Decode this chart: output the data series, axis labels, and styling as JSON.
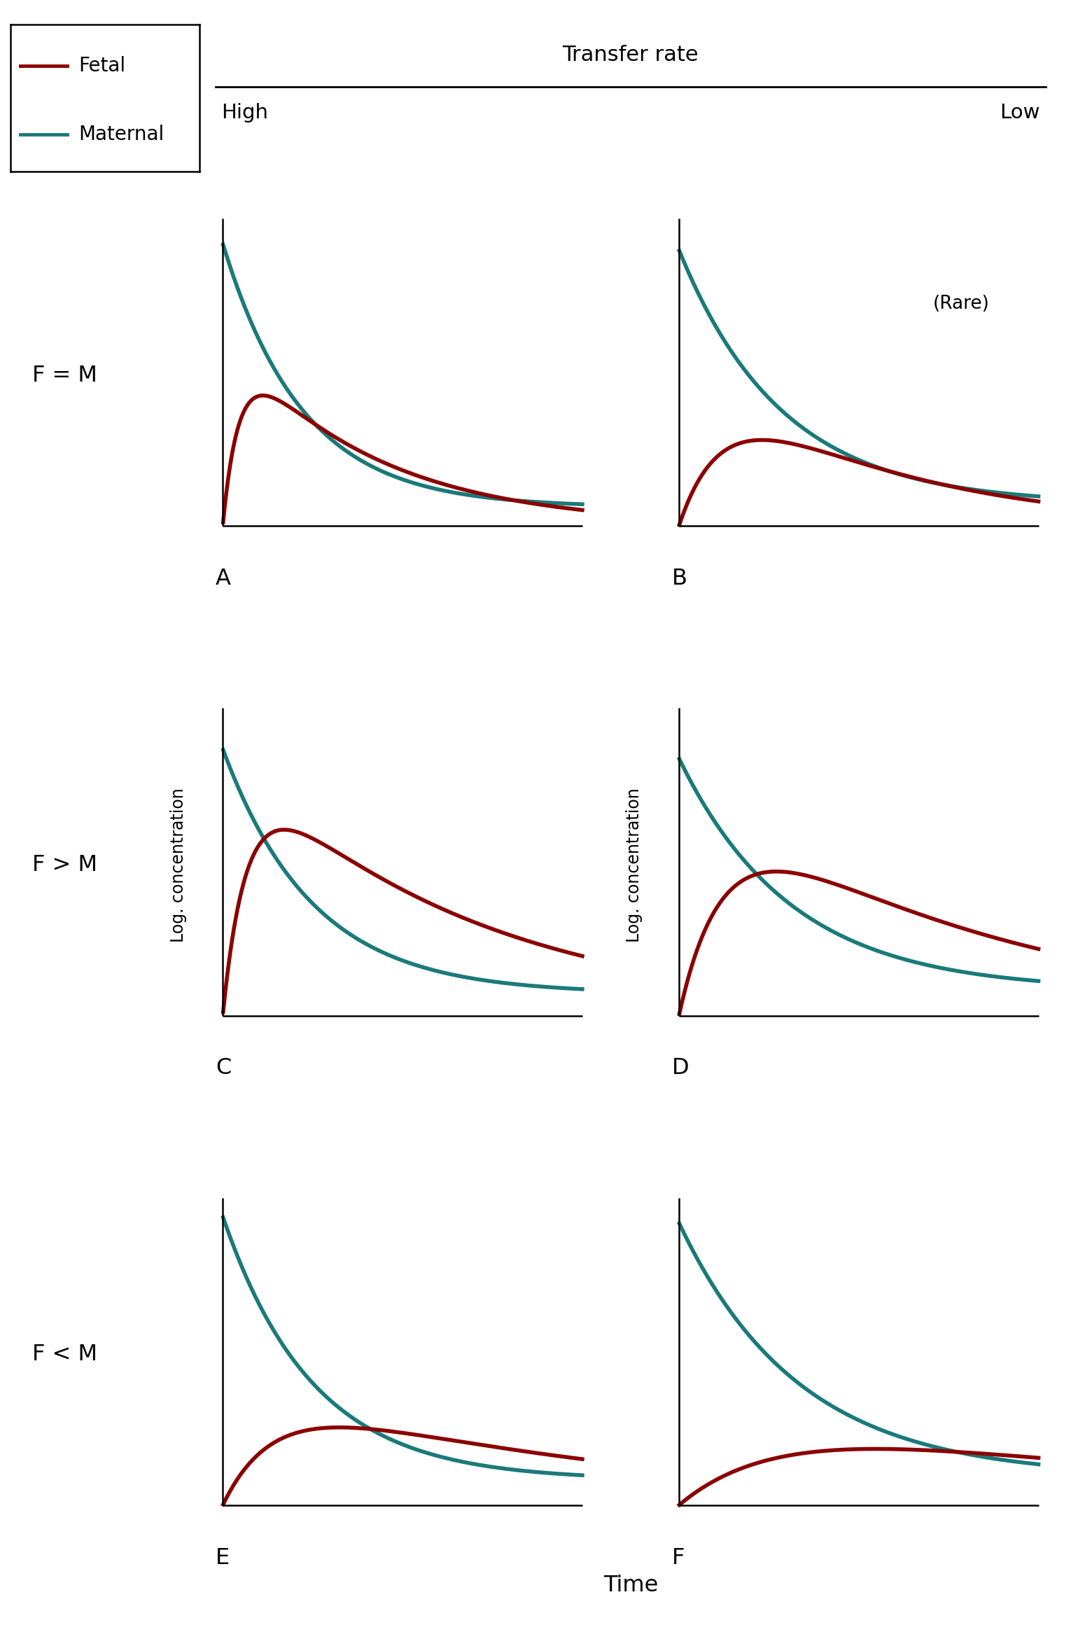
{
  "fetal_color": "#8B0000",
  "maternal_color": "#1A7A7A",
  "background_color": "#FFFFFF",
  "line_width": 4.0,
  "panel_labels": [
    "A",
    "B",
    "C",
    "D",
    "E",
    "F"
  ],
  "row_labels": [
    "F = M",
    "F > M",
    "F < M"
  ],
  "col_labels": [
    "High",
    "Low"
  ],
  "transfer_rate_label": "Transfer rate",
  "time_label": "Time",
  "log_conc_label": "Log. concentration",
  "rare_label": "(Rare)",
  "legend_fetal": "Fetal",
  "legend_maternal": "Maternal"
}
